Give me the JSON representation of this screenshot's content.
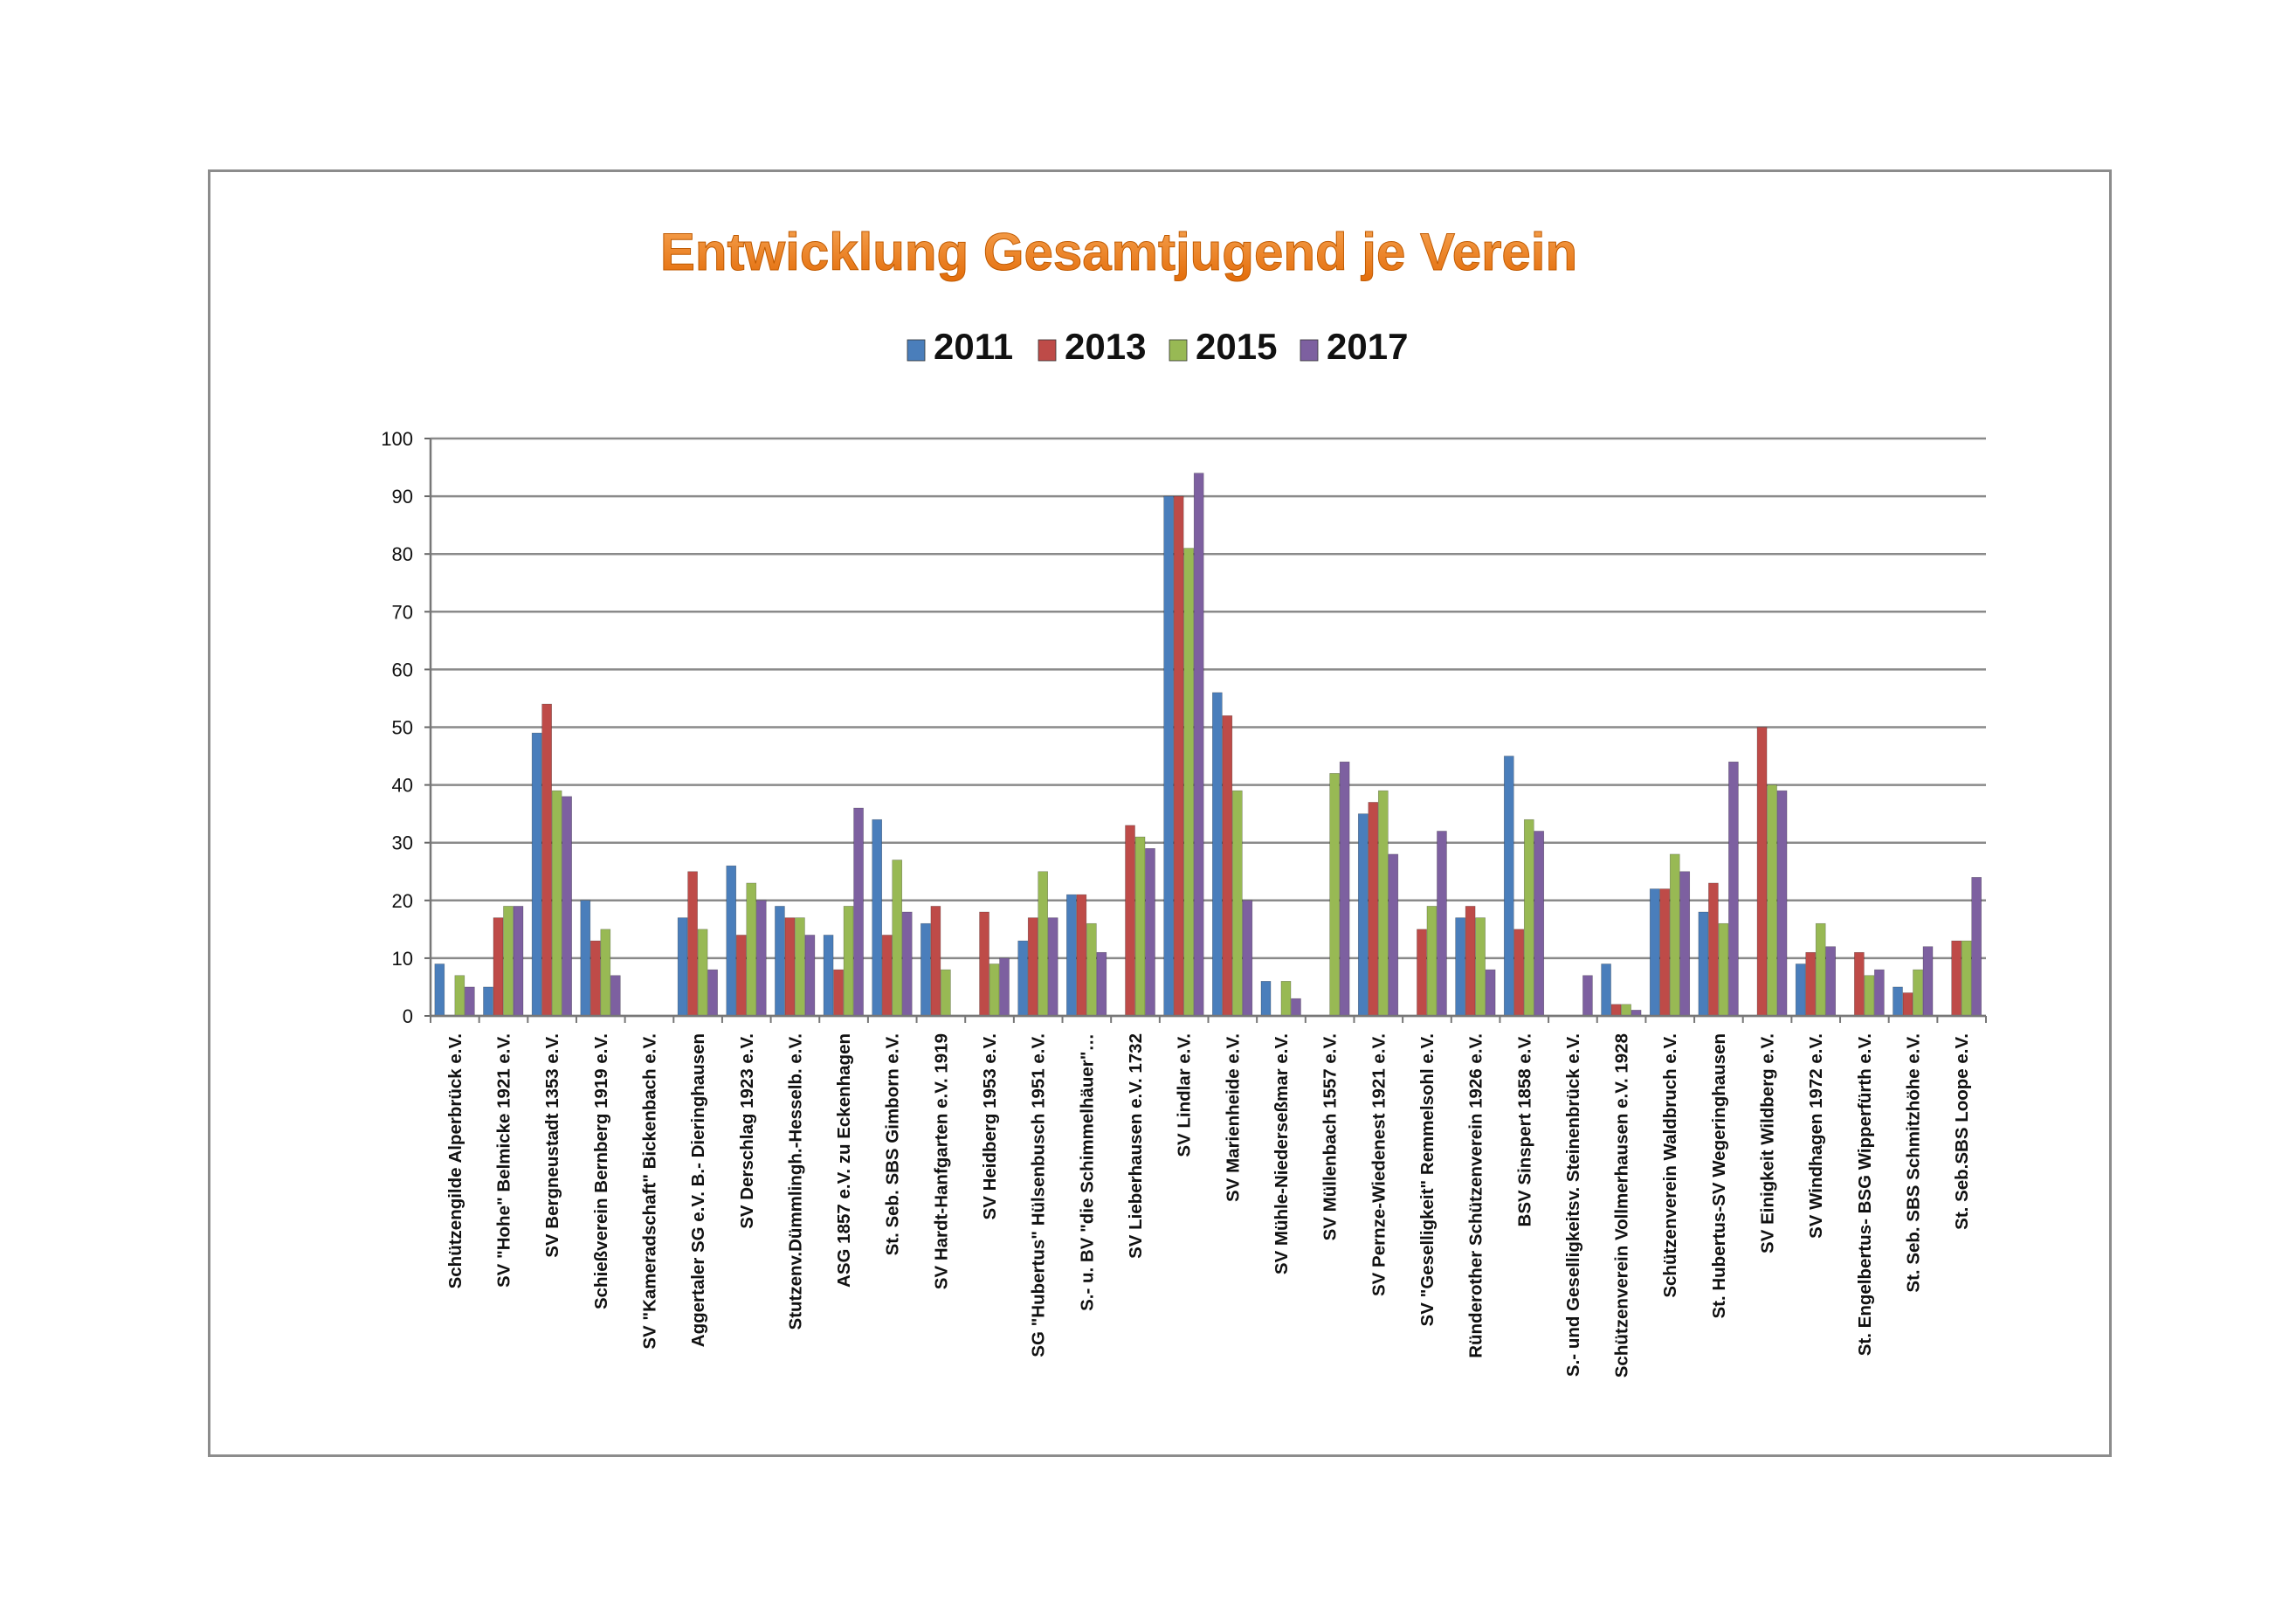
{
  "chart_data": {
    "type": "bar",
    "title": "Entwicklung Gesamtjugend je Verein",
    "xlabel": "",
    "ylabel": "",
    "ylim": [
      0,
      100
    ],
    "yticks": [
      0,
      10,
      20,
      30,
      40,
      50,
      60,
      70,
      80,
      90,
      100
    ],
    "grid": true,
    "legend_position": "top",
    "categories": [
      "Schützengilde Alperbrück e.V.",
      "SV \"Hohe\" Belmicke 1921 e.V.",
      "SV Bergneustadt 1353 e.V.",
      "Schießverein Bernberg 1919 e.V.",
      "SV \"Kameradschaft\" Bickenbach e.V.",
      "Aggertaler SG e.V. B.- Dieringhausen",
      "SV Derschlag 1923 e.V.",
      "Stutzenv.Dümmlingh.-Hesselb. e.V.",
      "ASG 1857 e.V. zu Eckenhagen",
      "St. Seb. SBS Gimborn e.V.",
      "SV Hardt-Hanfgarten e.V. 1919",
      "SV Heidberg 1953 e.V.",
      "SG \"Hubertus\" Hülsenbusch 1951 e.V.",
      "S.- u. BV \"die Schimmelhäuer\"…",
      "SV Lieberhausen e.V. 1732",
      "SV Lindlar e.V.",
      "SV Marienheide e.V.",
      "SV Mühle-Niederseßmar e.V.",
      "SV Müllenbach 1557 e.V.",
      "SV Pernze-Wiedenest 1921 e.V.",
      "SV \"Geselligkeit\" Remmelsohl e.V.",
      "Ründerother Schützenverein 1926 e.V.",
      "BSV Sinspert 1858 e.V.",
      "S.- und Geselligkeitsv. Steinenbrück e.V.",
      "Schützenverein Vollmerhausen e.V. 1928",
      "Schützenverein Waldbruch e.V.",
      "St. Hubertus-SV Wegeringhausen",
      "SV Einigkeit Wildberg e.V.",
      "SV Windhagen 1972 e.V.",
      "St. Engelbertus- BSG Wipperfürth e.V.",
      "St. Seb. SBS Schmitzhöhe e.V.",
      "St. Seb.SBS Loope e.V."
    ],
    "series": [
      {
        "name": "2011",
        "color": "#4a7ebb",
        "values": [
          9,
          5,
          49,
          20,
          0,
          17,
          26,
          19,
          14,
          34,
          16,
          0,
          13,
          21,
          0,
          90,
          56,
          6,
          0,
          35,
          0,
          17,
          45,
          0,
          9,
          22,
          18,
          0,
          9,
          0,
          5,
          0
        ]
      },
      {
        "name": "2013",
        "color": "#be4b48",
        "values": [
          0,
          17,
          54,
          13,
          0,
          25,
          14,
          17,
          8,
          14,
          19,
          18,
          17,
          21,
          33,
          90,
          52,
          0,
          0,
          37,
          15,
          19,
          15,
          0,
          2,
          22,
          23,
          50,
          11,
          11,
          4,
          13
        ]
      },
      {
        "name": "2015",
        "color": "#98b954",
        "values": [
          7,
          19,
          39,
          15,
          0,
          15,
          23,
          17,
          19,
          27,
          8,
          9,
          25,
          16,
          31,
          81,
          39,
          6,
          42,
          39,
          19,
          17,
          34,
          0,
          2,
          28,
          16,
          40,
          16,
          7,
          8,
          13
        ]
      },
      {
        "name": "2017",
        "color": "#7d60a0",
        "values": [
          5,
          19,
          38,
          7,
          0,
          8,
          20,
          14,
          36,
          18,
          0,
          10,
          17,
          11,
          29,
          94,
          20,
          3,
          44,
          28,
          32,
          8,
          32,
          7,
          1,
          25,
          44,
          39,
          12,
          8,
          12,
          24
        ]
      }
    ]
  }
}
